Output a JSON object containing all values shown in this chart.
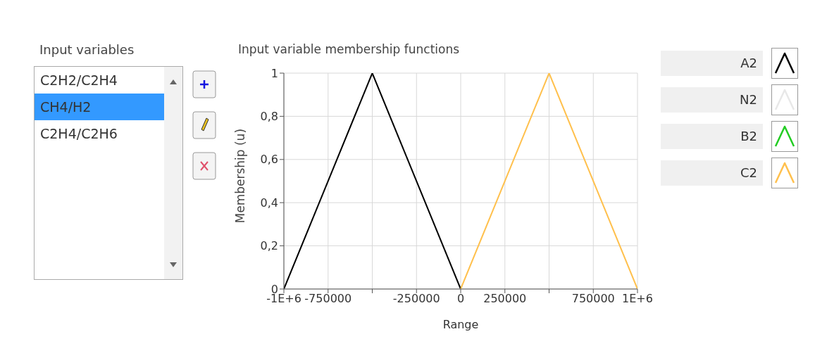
{
  "chart_data": {
    "type": "line",
    "title": "Input variable membership functions",
    "xlabel": "Range",
    "ylabel": "Membership (u)",
    "annotations": [
      "Input variables",
      "C2H2/C2H4",
      "CH4/H2",
      "C2H4/C2H6"
    ],
    "series": [
      {
        "name": "A2",
        "color": "#000000",
        "x": [
          -1000000,
          -500000,
          0
        ],
        "values": [
          0,
          1,
          0
        ]
      },
      {
        "name": "N2",
        "color": "#e8e8e8"
      },
      {
        "name": "B2",
        "color": "#22cc22"
      },
      {
        "name": "C2",
        "color": "#ffc04d",
        "x": [
          0,
          500000,
          1000000
        ],
        "values": [
          0,
          1,
          0
        ]
      }
    ],
    "xlim": [
      -1000000,
      1000000
    ],
    "xticks": [
      {
        "value": -1000000,
        "label": "-1E+6"
      },
      -750000,
      {
        "value": -500000,
        "label": null
      },
      -250000,
      0,
      250000,
      {
        "value": 500000,
        "label": null
      },
      750000,
      {
        "value": 1000000,
        "label": "1E+6"
      }
    ],
    "ylim": [
      0,
      1
    ],
    "yticks": [
      0,
      {
        "value": 0.2,
        "label": "0,2"
      },
      {
        "value": 0.4,
        "label": "0,4"
      },
      {
        "value": 0.6,
        "label": "0,6"
      },
      {
        "value": 0.8,
        "label": "0,8"
      },
      1
    ],
    "grid": true,
    "legend": "right",
    "marker": "none",
    "line_style": "solid"
  }
}
